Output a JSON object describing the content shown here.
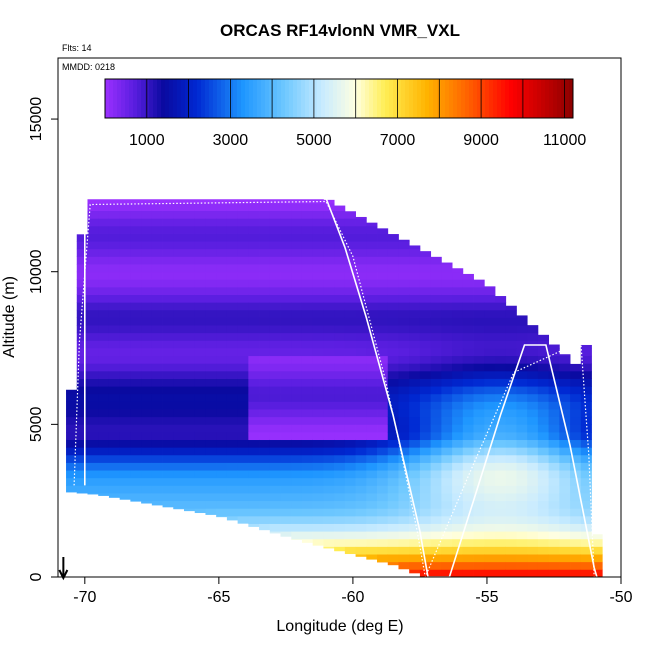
{
  "chart_data": {
    "type": "heatmap",
    "title": "ORCAS RF14vlonN VMR_VXL",
    "flights_note": "Flts: 14",
    "date_note": "MMDD: 0218",
    "xlabel": "Longitude (deg E)",
    "ylabel": "Altitude (m)",
    "xlim": [
      -71,
      -50
    ],
    "ylim": [
      0,
      17000
    ],
    "x_ticks": [
      -70,
      -65,
      -60,
      -55,
      -50
    ],
    "x_tick_labels": [
      "-70",
      "-65",
      "-60",
      "-55",
      "-50"
    ],
    "y_ticks": [
      0,
      5000,
      10000,
      15000
    ],
    "y_tick_labels": [
      "0",
      "5000",
      "10000",
      "15000"
    ],
    "colorbar": {
      "min": 0,
      "max": 11200,
      "ticks": [
        1000,
        3000,
        5000,
        7000,
        9000,
        11000
      ],
      "tick_labels": [
        "1000",
        "3000",
        "5000",
        "7000",
        "9000",
        "11000"
      ],
      "stops": [
        {
          "value": 0,
          "color": "#9b30ff"
        },
        {
          "value": 700,
          "color": "#5a1ee0"
        },
        {
          "value": 1400,
          "color": "#0a0aa0"
        },
        {
          "value": 2200,
          "color": "#0028d2"
        },
        {
          "value": 3300,
          "color": "#1e96ff"
        },
        {
          "value": 4300,
          "color": "#6ec8ff"
        },
        {
          "value": 5200,
          "color": "#c8ebff"
        },
        {
          "value": 6000,
          "color": "#ffffe0"
        },
        {
          "value": 6700,
          "color": "#ffee55"
        },
        {
          "value": 7700,
          "color": "#ffb400"
        },
        {
          "value": 8700,
          "color": "#ff6000"
        },
        {
          "value": 9700,
          "color": "#ff0000"
        },
        {
          "value": 10700,
          "color": "#b40000"
        },
        {
          "value": 11200,
          "color": "#8b0000"
        }
      ]
    },
    "field": {
      "x_edges": [
        -70.7,
        -69.3,
        -61.2,
        -58.0,
        -57.4,
        -55.0,
        -51.2,
        -50.9
      ],
      "top_boundary": [
        [
          -70.7,
          3000
        ],
        [
          -70.4,
          7700
        ],
        [
          -70.0,
          12400
        ],
        [
          -61.0,
          12400
        ],
        [
          -55.0,
          9600
        ],
        [
          -51.6,
          6900
        ],
        [
          -51.3,
          7600
        ],
        [
          -51.1,
          7600
        ],
        [
          -51.1,
          4800
        ],
        [
          -50.9,
          4800
        ],
        [
          -50.9,
          1400
        ]
      ],
      "bottom_boundary": [
        [
          -70.7,
          2800
        ],
        [
          -69.5,
          2700
        ],
        [
          -65.0,
          2000
        ],
        [
          -62.0,
          1200
        ],
        [
          -58.5,
          400
        ],
        [
          -57.3,
          0
        ],
        [
          -50.8,
          0
        ],
        [
          -50.8,
          1400
        ]
      ],
      "value_profile": [
        {
          "alt": 0,
          "value": 9800
        },
        {
          "alt": 500,
          "value": 7800
        },
        {
          "alt": 1000,
          "value": 6200
        },
        {
          "alt": 1600,
          "value": 5300
        },
        {
          "alt": 2300,
          "value": 4300
        },
        {
          "alt": 3000,
          "value": 3300
        },
        {
          "alt": 3800,
          "value": 2500
        },
        {
          "alt": 4600,
          "value": 1500
        },
        {
          "alt": 6000,
          "value": 1100
        },
        {
          "alt": 7600,
          "value": 900
        },
        {
          "alt": 9000,
          "value": 600
        },
        {
          "alt": 12500,
          "value": 300
        }
      ],
      "east_plume": {
        "lon_center": -54.5,
        "alt_center": 4200,
        "lon_width": 3.5,
        "alt_width": 2200,
        "boost": 2800
      },
      "west_dry": {
        "lon_min": -64.0,
        "lon_max": -58.5,
        "alt_min": 4600,
        "alt_max": 7300,
        "value": 400
      }
    },
    "flight_track": [
      [
        -70.0,
        3000
      ],
      [
        -70.0,
        12400
      ],
      [
        -61.0,
        12400
      ],
      [
        -60.3,
        10800
      ],
      [
        -59.5,
        8500
      ],
      [
        -58.5,
        5300
      ],
      [
        -57.5,
        1500
      ],
      [
        -57.2,
        0
      ],
      [
        -56.4,
        0
      ],
      [
        -55.5,
        2500
      ],
      [
        -54.5,
        5300
      ],
      [
        -53.6,
        7600
      ],
      [
        -52.8,
        7600
      ],
      [
        -51.9,
        4300
      ],
      [
        -51.0,
        300
      ],
      [
        -50.9,
        0
      ]
    ],
    "flight_track_dotted": [
      [
        -70.4,
        3000
      ],
      [
        -70.2,
        7700
      ],
      [
        -69.8,
        12200
      ],
      [
        -61.0,
        12300
      ],
      [
        -60.0,
        10500
      ],
      [
        -58.8,
        6500
      ],
      [
        -58.3,
        4500
      ],
      [
        -57.6,
        1500
      ],
      [
        -57.3,
        0
      ],
      [
        -55.6,
        3500
      ],
      [
        -54.0,
        6700
      ],
      [
        -51.5,
        7700
      ],
      [
        -51.2,
        4000
      ],
      [
        -51.0,
        0
      ]
    ],
    "marker_lon": -70.8
  }
}
